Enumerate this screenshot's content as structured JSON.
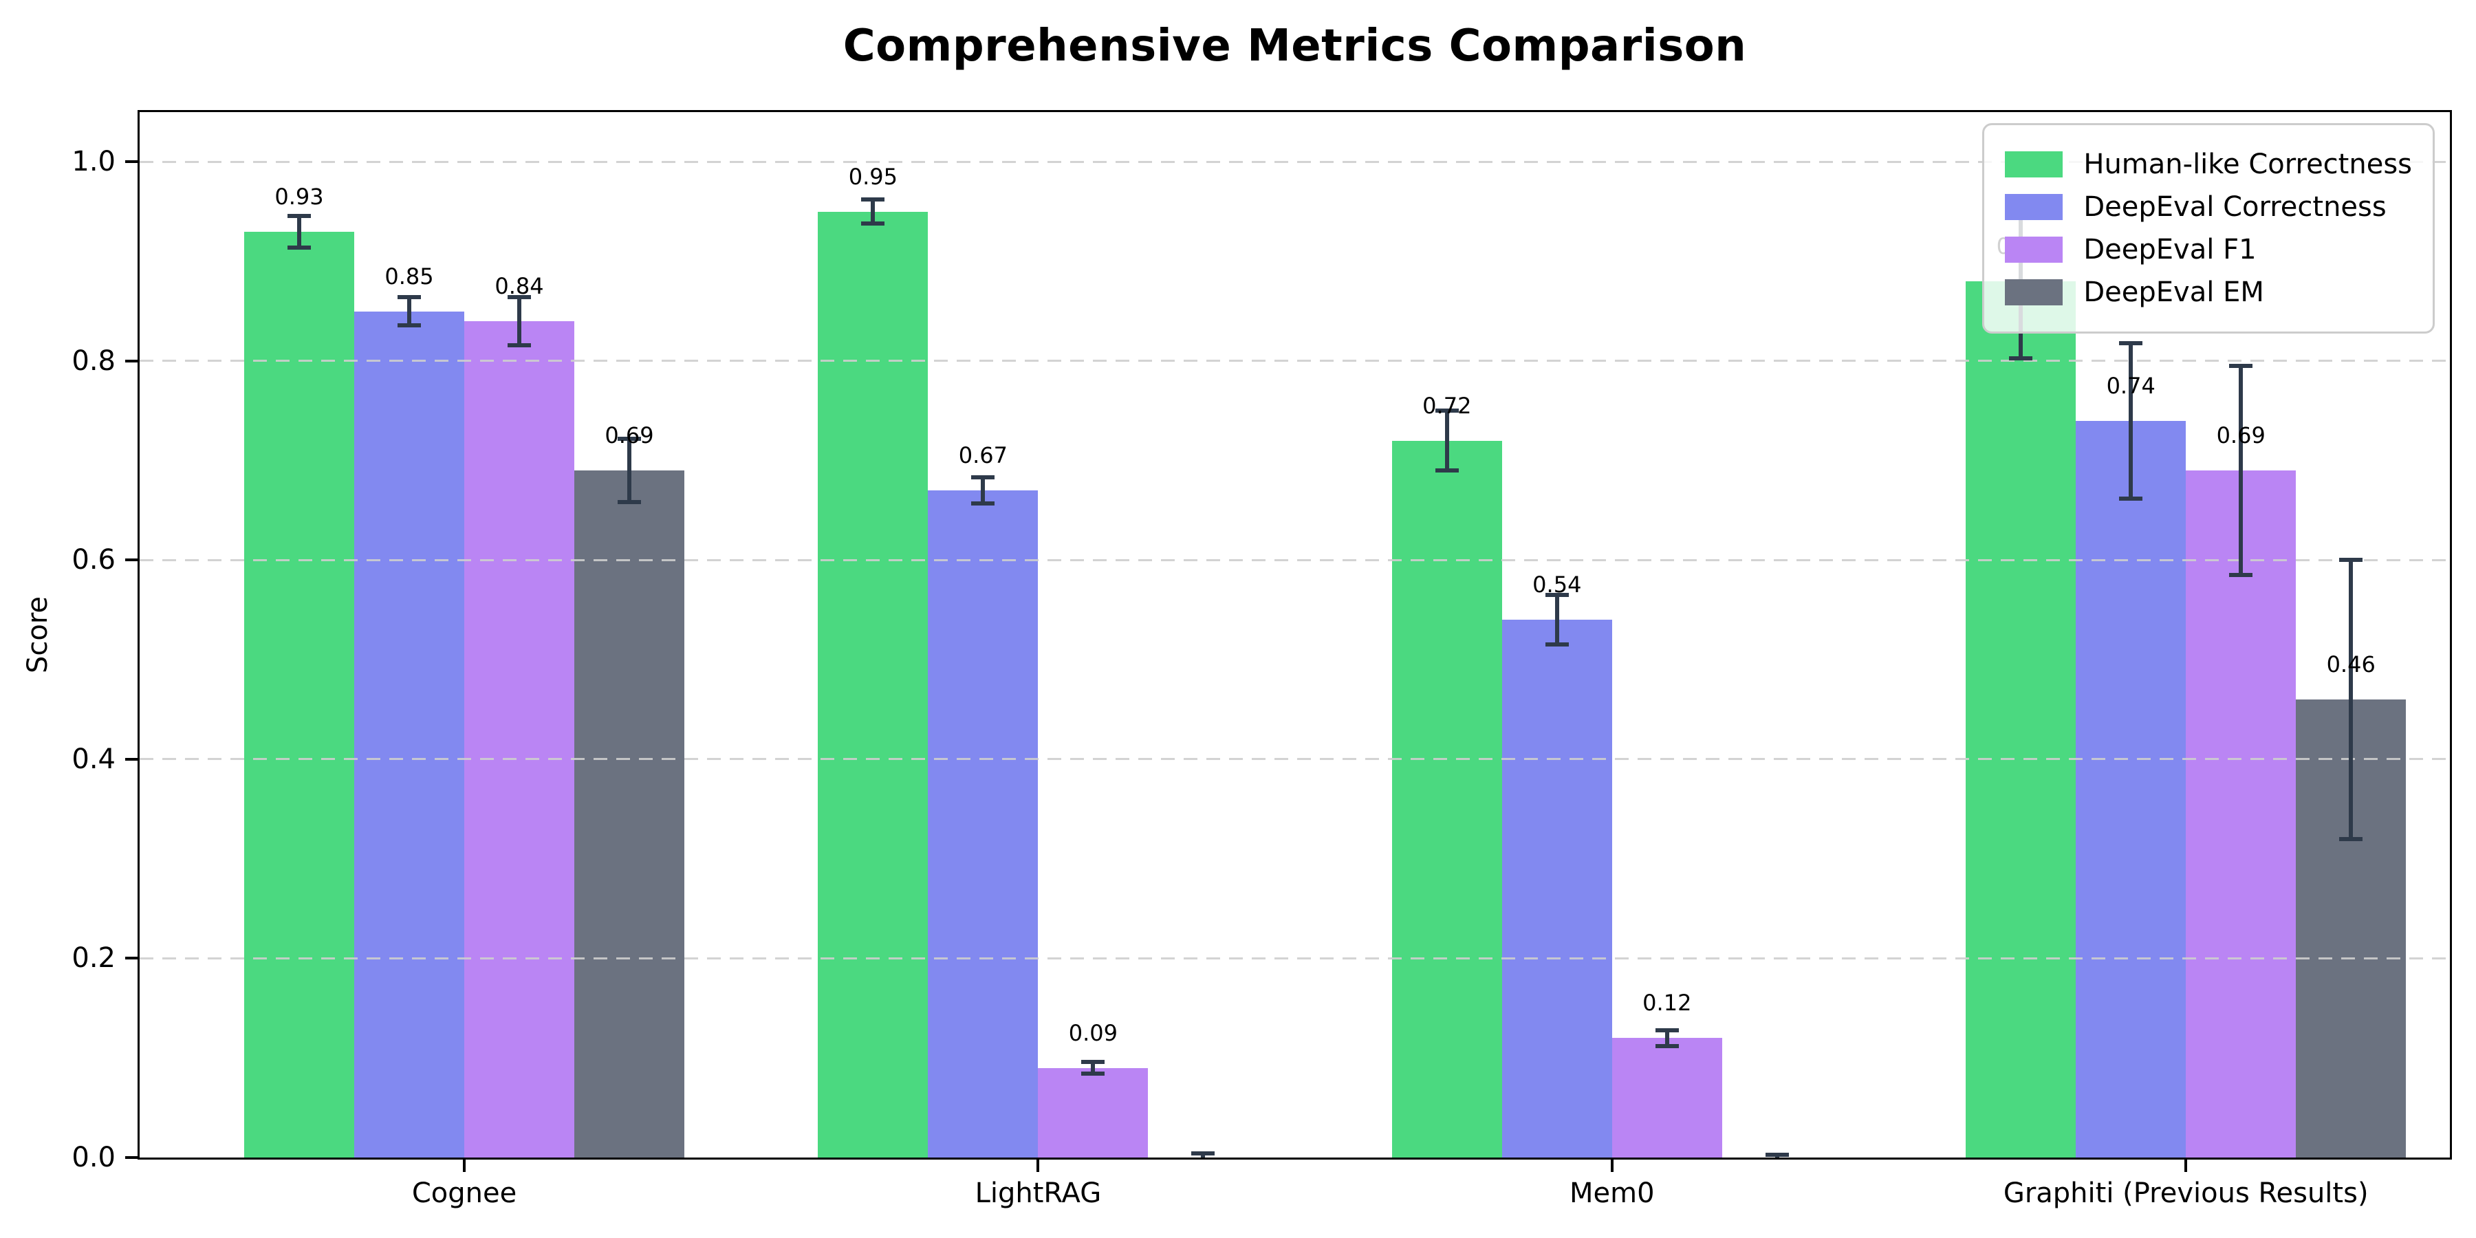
{
  "chart_data": {
    "type": "bar",
    "title": "Comprehensive Metrics Comparison",
    "ylabel": "Score",
    "xlabel": "",
    "categories": [
      "Cognee",
      "LightRAG",
      "Mem0",
      "Graphiti (Previous Results)"
    ],
    "series": [
      {
        "name": "Human-like Correctness",
        "color": "#4bd980",
        "values": [
          0.93,
          0.95,
          0.72,
          0.88
        ],
        "errors": [
          0.016,
          0.012,
          0.03,
          0.077
        ],
        "labels": [
          "0.93",
          "0.95",
          "0.72",
          "0.88"
        ]
      },
      {
        "name": "DeepEval Correctness",
        "color": "#8289f0",
        "values": [
          0.85,
          0.67,
          0.54,
          0.74
        ],
        "errors": [
          0.014,
          0.013,
          0.025,
          0.078
        ],
        "labels": [
          "0.85",
          "0.67",
          "0.54",
          "0.74"
        ]
      },
      {
        "name": "DeepEval F1",
        "color": "#ba85f4",
        "values": [
          0.84,
          0.09,
          0.12,
          0.69
        ],
        "errors": [
          0.024,
          0.006,
          0.008,
          0.105
        ],
        "labels": [
          "0.84",
          "0.09",
          "0.12",
          "0.69"
        ]
      },
      {
        "name": "DeepEval EM",
        "color": "#6b7280",
        "values": [
          0.69,
          0.0,
          0.0,
          0.46
        ],
        "errors": [
          0.032,
          0.004,
          0.003,
          0.14
        ],
        "labels": [
          "0.69",
          "",
          "",
          "0.46"
        ]
      }
    ],
    "ylim": [
      0,
      1.05
    ],
    "yticks": [
      0.0,
      0.2,
      0.4,
      0.6,
      0.8,
      1.0
    ],
    "ytick_labels": [
      "0.0",
      "0.2",
      "0.4",
      "0.6",
      "0.8",
      "1.0"
    ],
    "grid": {
      "axis": "y",
      "style": "dashed",
      "color": "#cecece",
      "drawn_over_bars": true
    },
    "legend": {
      "position": "upper right"
    },
    "colors": {
      "error_bar": "#2e3a4a",
      "axis": "#000000",
      "background": "#ffffff",
      "legend_border": "#cccccc",
      "text": "#000000"
    }
  }
}
